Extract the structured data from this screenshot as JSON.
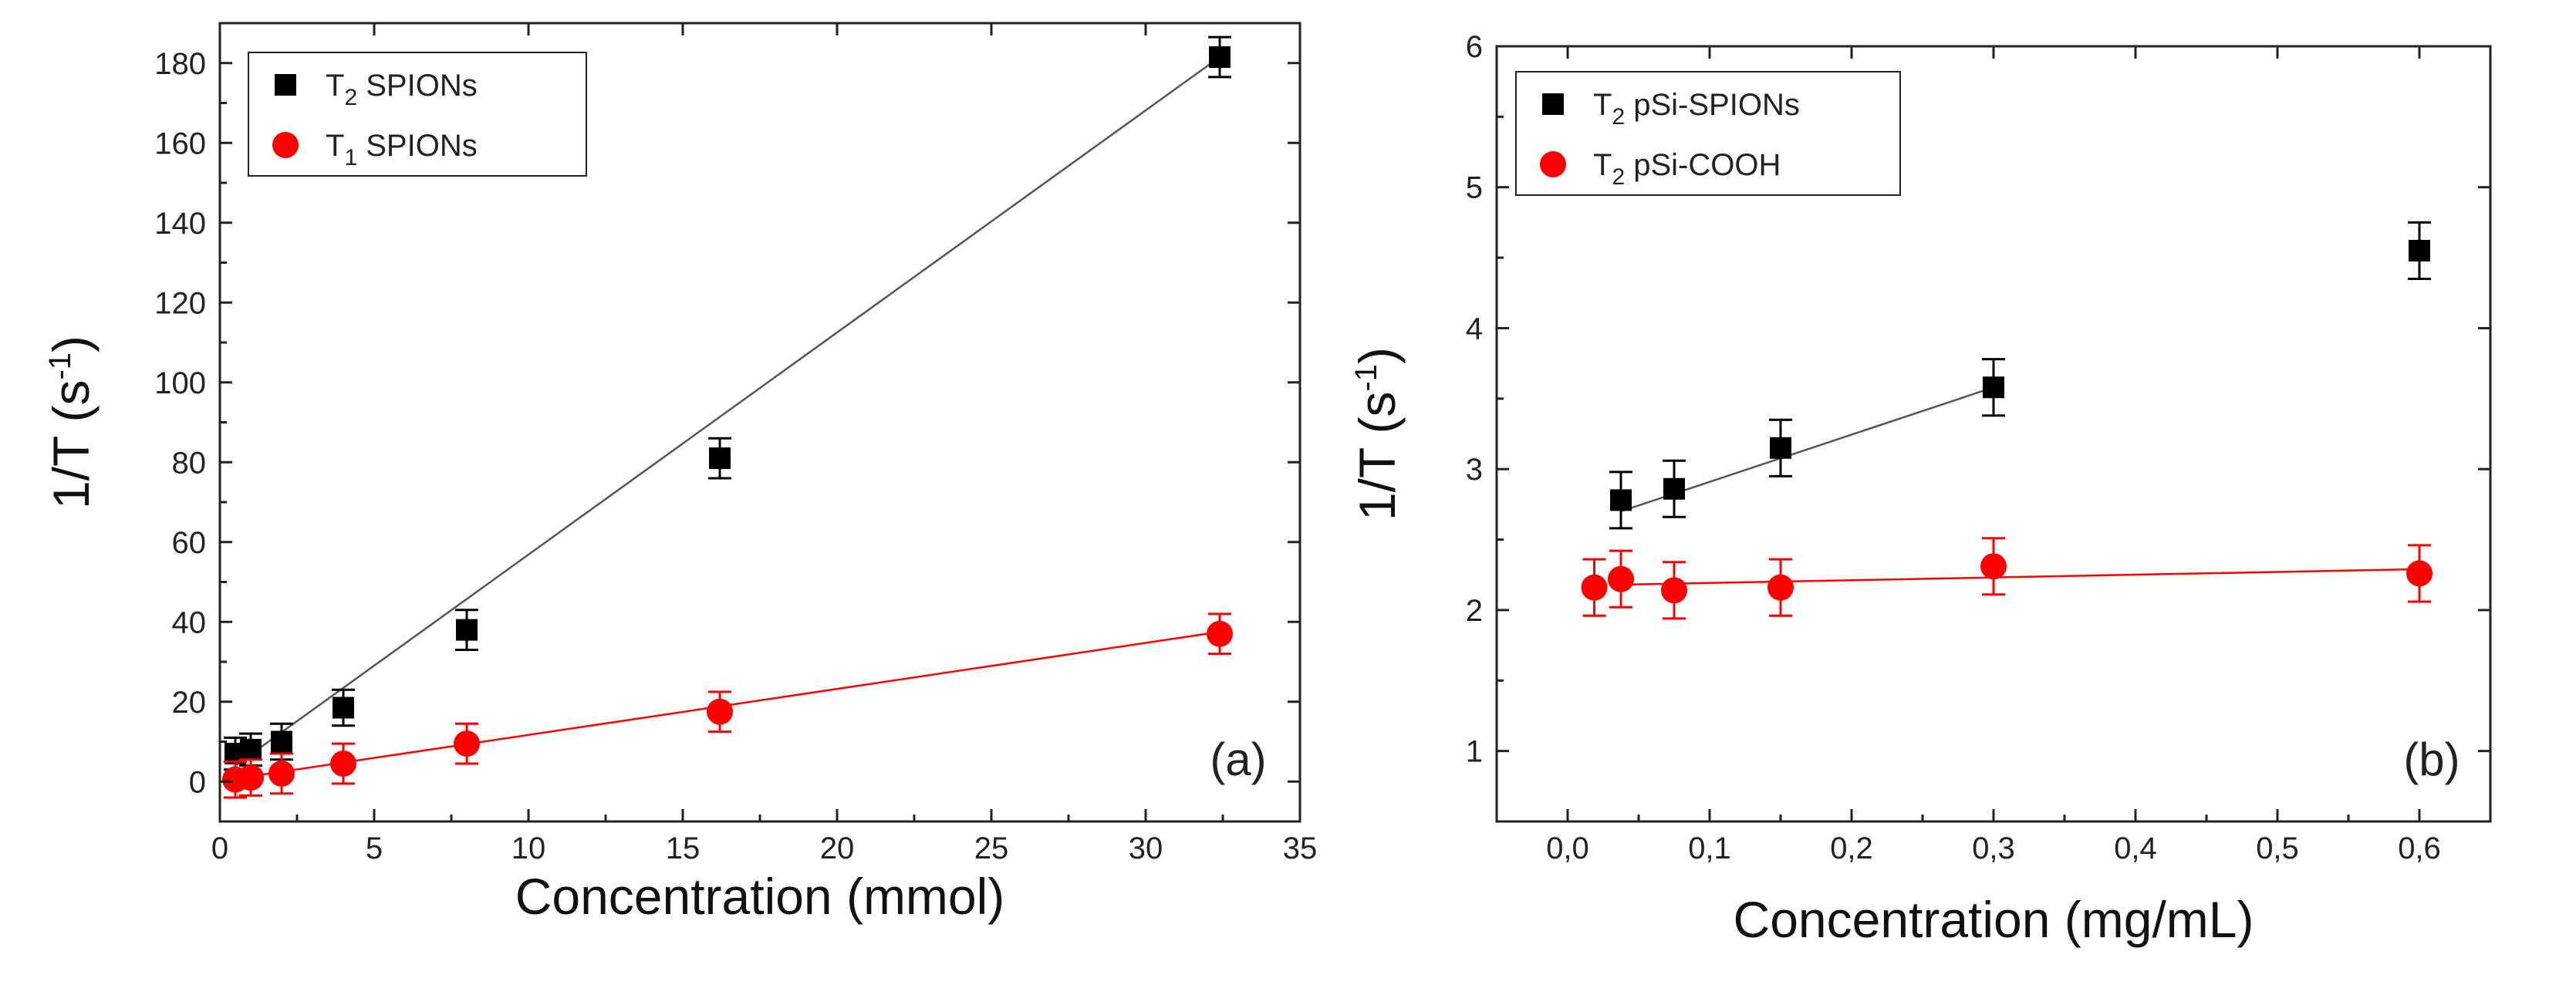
{
  "chart_data": [
    {
      "type": "scatter",
      "panel_label": "(a)",
      "xlabel": "Concentration (mmol)",
      "ylabel_main": "1/T (s",
      "ylabel_sup": "-1",
      "ylabel_close": ")",
      "xlim": [
        0,
        35
      ],
      "ylim": [
        -10,
        190
      ],
      "xticks": [
        0,
        5,
        10,
        15,
        20,
        25,
        30,
        35
      ],
      "xtick_labels": [
        "0",
        "5",
        "10",
        "15",
        "20",
        "25",
        "30",
        "35"
      ],
      "yticks": [
        0,
        20,
        40,
        60,
        80,
        100,
        120,
        140,
        160,
        180
      ],
      "ytick_labels": [
        "0",
        "20",
        "40",
        "60",
        "80",
        "100",
        "120",
        "140",
        "160",
        "180"
      ],
      "legend_position": "top-left",
      "series": [
        {
          "name": "T2 SPIONs",
          "legend_main": "T",
          "legend_sub": "2",
          "legend_rest": " SPIONs",
          "marker": "square",
          "color": "#000000",
          "line_color": "#555555",
          "x": [
            0.5,
            1.0,
            2.0,
            4.0,
            8.0,
            16.2,
            32.4
          ],
          "y": [
            7.0,
            8.0,
            10.0,
            18.5,
            38.0,
            81.0,
            181.5
          ],
          "err": [
            4.0,
            4.0,
            4.5,
            4.5,
            5.0,
            5.0,
            5.0
          ],
          "fit": {
            "x": [
              0.5,
              32.4
            ],
            "y": [
              4.0,
              181.5
            ]
          }
        },
        {
          "name": "T1 SPIONs",
          "legend_main": "T",
          "legend_sub": "1",
          "legend_rest": " SPIONs",
          "marker": "circle",
          "color": "#ff0000",
          "line_color": "#ff0000",
          "x": [
            0.5,
            1.0,
            2.0,
            4.0,
            8.0,
            16.2,
            32.4
          ],
          "y": [
            0.5,
            1.0,
            2.0,
            4.5,
            9.5,
            17.5,
            37.0
          ],
          "err": [
            4.5,
            4.5,
            5.0,
            5.0,
            5.0,
            5.0,
            5.0
          ],
          "fit": {
            "x": [
              0.3,
              32.4
            ],
            "y": [
              0.5,
              37.5
            ]
          }
        }
      ]
    },
    {
      "type": "scatter",
      "panel_label": "(b)",
      "xlabel": "Concentration (mg/mL)",
      "ylabel_main": "1/T (s",
      "ylabel_sup": "-1",
      "ylabel_close": ")",
      "xlim": [
        -0.05,
        0.65
      ],
      "ylim": [
        0.5,
        6.0
      ],
      "xticks": [
        0.0,
        0.1,
        0.2,
        0.3,
        0.4,
        0.5,
        0.6
      ],
      "xtick_labels": [
        "0,0",
        "0,1",
        "0,2",
        "0,3",
        "0,4",
        "0,5",
        "0,6"
      ],
      "yticks": [
        1,
        2,
        3,
        4,
        5,
        6
      ],
      "ytick_labels": [
        "1",
        "2",
        "3",
        "4",
        "5",
        "6"
      ],
      "legend_position": "top-left",
      "series": [
        {
          "name": "T2 pSi-SPIONs",
          "legend_main": "T",
          "legend_sub": "2",
          "legend_rest": " pSi-SPIONs",
          "marker": "square",
          "color": "#000000",
          "line_color": "#555555",
          "x": [
            0.0375,
            0.075,
            0.15,
            0.3,
            0.6
          ],
          "y": [
            2.78,
            2.86,
            3.15,
            3.58,
            4.55
          ],
          "err": [
            0.2,
            0.2,
            0.2,
            0.2,
            0.2
          ],
          "fit": {
            "x": [
              0.0375,
              0.3
            ],
            "y": [
              2.7,
              3.58
            ]
          }
        },
        {
          "name": "T2 pSi-COOH",
          "legend_main": "T",
          "legend_sub": "2",
          "legend_rest": " pSi-COOH",
          "marker": "circle",
          "color": "#ff0000",
          "line_color": "#ff0000",
          "x": [
            0.01875,
            0.0375,
            0.075,
            0.15,
            0.3,
            0.6
          ],
          "y": [
            2.16,
            2.22,
            2.14,
            2.16,
            2.31,
            2.26
          ],
          "err": [
            0.2,
            0.2,
            0.2,
            0.2,
            0.2,
            0.2
          ],
          "fit": {
            "x": [
              0.0375,
              0.6
            ],
            "y": [
              2.18,
              2.29
            ]
          }
        }
      ]
    }
  ]
}
